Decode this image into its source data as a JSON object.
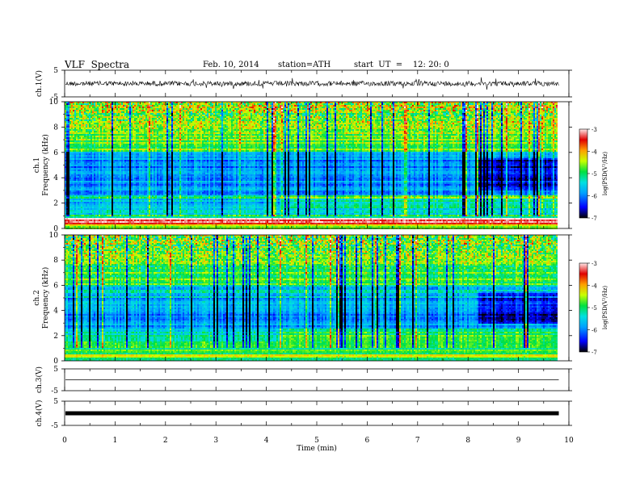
{
  "header": {
    "title": "VLF  Spectra",
    "date": "Feb. 10, 2014",
    "station": "station=ATH",
    "start": "start  UT  =    12: 20: 0"
  },
  "chart_data": [
    {
      "type": "line",
      "panel": "ch1-waveform",
      "ylabel": "ch.1(V)",
      "ylim": [
        -5,
        5
      ],
      "yticks": [
        "5",
        "-5"
      ],
      "xlim": [
        0,
        10
      ],
      "data_extent_min": 9.8,
      "series": [
        {
          "trace": "noisy",
          "baseline_V": 0.0,
          "color": "#000000"
        }
      ]
    },
    {
      "type": "heatmap",
      "panel": "ch1-spectrogram",
      "ylabel_top": "ch.1",
      "ylabel": "Frequency  (kHz)",
      "ylim": [
        0,
        10
      ],
      "yticks": [
        "0",
        "2",
        "4",
        "6",
        "8",
        "10"
      ],
      "xlim": [
        0,
        10
      ],
      "colorbar": {
        "label": "log(PSD(V²/Hz)",
        "range": [
          -7,
          -3
        ],
        "ticks": [
          "-3",
          "-4",
          "-5",
          "-6",
          "-7"
        ]
      },
      "bands_kHz": [
        [
          0.0,
          0.3,
          -4.5
        ],
        [
          0.3,
          0.85,
          -3.2
        ],
        [
          0.85,
          1.1,
          -5.1
        ],
        [
          1.1,
          2.4,
          -5.6
        ],
        [
          2.4,
          2.6,
          -5.2
        ],
        [
          2.6,
          5.7,
          -5.9
        ],
        [
          5.7,
          6.0,
          -5.6
        ],
        [
          6.0,
          10.0,
          -4.8
        ]
      ]
    },
    {
      "type": "heatmap",
      "panel": "ch2-spectrogram",
      "ylabel_top": "ch.2",
      "ylabel": "Frequency  (kHz)",
      "ylim": [
        0,
        10
      ],
      "yticks": [
        "0",
        "2",
        "4",
        "6",
        "8",
        "10"
      ],
      "xlim": [
        0,
        10
      ],
      "colorbar": {
        "label": "log(PSD(V²/Hz)",
        "range": [
          -7,
          -3
        ],
        "ticks": [
          "-3",
          "-4",
          "-5",
          "-6",
          "-7"
        ]
      },
      "bands_kHz": [
        [
          0.0,
          0.2,
          -4.8
        ],
        [
          0.2,
          0.5,
          -4.2
        ],
        [
          0.5,
          1.6,
          -4.9
        ],
        [
          1.6,
          2.6,
          -5.3
        ],
        [
          2.6,
          5.0,
          -5.8
        ],
        [
          5.0,
          6.0,
          -5.5
        ],
        [
          6.0,
          10.0,
          -4.9
        ]
      ]
    },
    {
      "type": "line",
      "panel": "ch3-waveform",
      "ylabel": "ch.3(V)",
      "ylim": [
        -5,
        5
      ],
      "yticks": [
        "5",
        "-5"
      ],
      "xlim": [
        0,
        10
      ],
      "series": [
        {
          "trace": "flat",
          "baseline_V": 0.0,
          "color": "#000000"
        }
      ]
    },
    {
      "type": "line",
      "panel": "ch4-waveform",
      "ylabel": "ch.4(V)",
      "ylim": [
        -5,
        5
      ],
      "yticks": [
        "5",
        "-5"
      ],
      "xlim": [
        0,
        10
      ],
      "series": [
        {
          "trace": "thick",
          "baseline_V": 0.0,
          "color": "#000000"
        }
      ]
    }
  ],
  "x_axis": {
    "label": "Time  (min)",
    "ticks": [
      "0",
      "1",
      "2",
      "3",
      "4",
      "5",
      "6",
      "7",
      "8",
      "9",
      "10"
    ]
  }
}
